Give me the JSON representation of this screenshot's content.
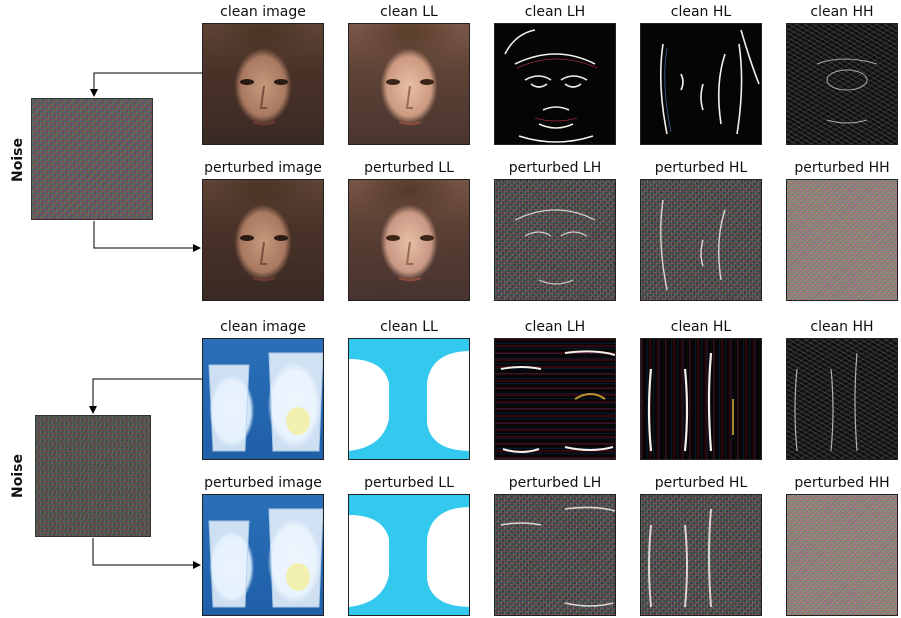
{
  "groups": [
    {
      "side_label": "Noise",
      "clean_titles": [
        "clean image",
        "clean LL",
        "clean LH",
        "clean HL",
        "clean HH"
      ],
      "perturbed_titles": [
        "perturbed image",
        "perturbed LL",
        "perturbed LH",
        "perturbed HL",
        "perturbed HH"
      ]
    },
    {
      "side_label": "Noise",
      "clean_titles": [
        "clean image",
        "clean LL",
        "clean LH",
        "clean HL",
        "clean HH"
      ],
      "perturbed_titles": [
        "perturbed image",
        "perturbed LL",
        "perturbed LH",
        "perturbed HL",
        "perturbed HH"
      ]
    }
  ],
  "colors": {
    "arrow": "#000000",
    "llBlue": "#33c8ee",
    "edgeWhite": "#f4f0ea"
  }
}
